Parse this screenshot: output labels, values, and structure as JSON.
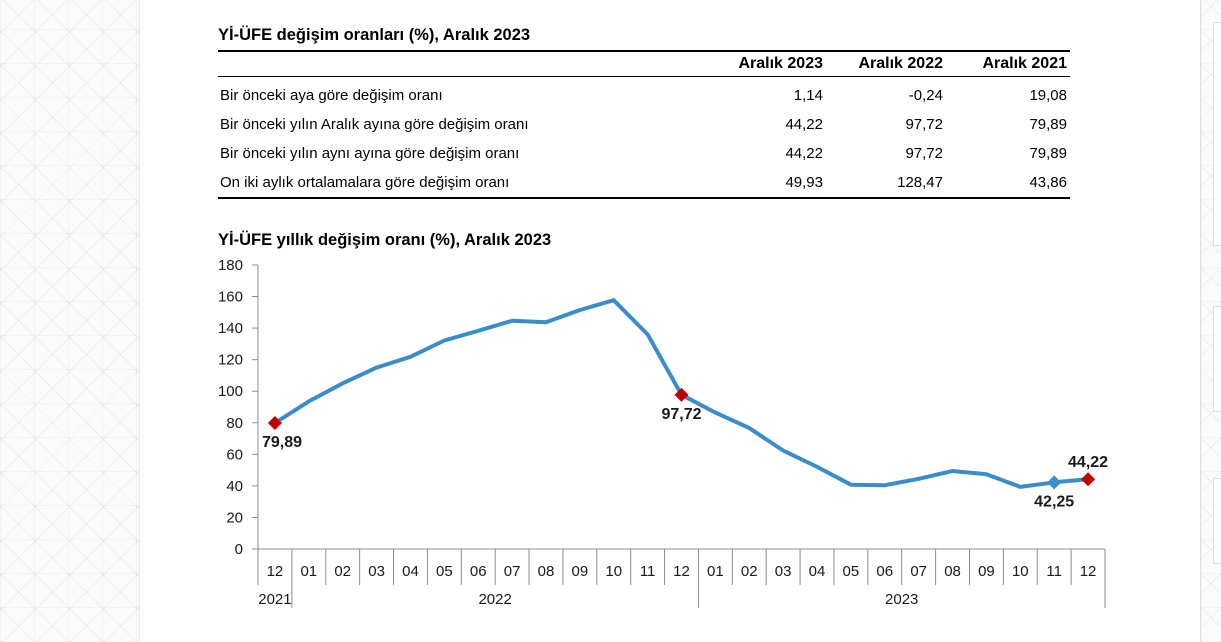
{
  "table": {
    "title": "Yİ-ÜFE değişim oranları (%), Aralık 2023",
    "headers": [
      "Aralık 2023",
      "Aralık 2022",
      "Aralık 2021"
    ],
    "rows": [
      {
        "label": "Bir önceki aya göre değişim oranı",
        "values": [
          "1,14",
          "-0,24",
          "19,08"
        ]
      },
      {
        "label": "Bir önceki yılın Aralık ayına göre değişim oranı",
        "values": [
          "44,22",
          "97,72",
          "79,89"
        ]
      },
      {
        "label": "Bir önceki yılın aynı ayına göre değişim oranı",
        "values": [
          "44,22",
          "97,72",
          "79,89"
        ]
      },
      {
        "label": "On iki aylık ortalamalara göre değişim oranı",
        "values": [
          "49,93",
          "128,47",
          "43,86"
        ]
      }
    ]
  },
  "chart_data": {
    "type": "line",
    "title": "Yİ-ÜFE yıllık değişim oranı (%), Aralık 2023",
    "categories": [
      "12",
      "01",
      "02",
      "03",
      "04",
      "05",
      "06",
      "07",
      "08",
      "09",
      "10",
      "11",
      "12",
      "01",
      "02",
      "03",
      "04",
      "05",
      "06",
      "07",
      "08",
      "09",
      "10",
      "11",
      "12"
    ],
    "category_years": [
      "2021",
      "2022",
      "2022",
      "2022",
      "2022",
      "2022",
      "2022",
      "2022",
      "2022",
      "2022",
      "2022",
      "2022",
      "2022",
      "2023",
      "2023",
      "2023",
      "2023",
      "2023",
      "2023",
      "2023",
      "2023",
      "2023",
      "2023",
      "2023",
      "2023"
    ],
    "series": [
      {
        "values": [
          79.89,
          93.53,
          105.01,
          114.97,
          121.82,
          132.16,
          138.31,
          144.61,
          143.75,
          151.5,
          157.69,
          136.02,
          97.72,
          86.46,
          76.61,
          62.45,
          52.11,
          40.76,
          40.42,
          44.5,
          49.41,
          47.44,
          39.39,
          42.25,
          44.22
        ],
        "color": "#3b8ccb"
      }
    ],
    "ylim": [
      0,
      180
    ],
    "yticks": [
      0,
      20,
      40,
      60,
      80,
      100,
      120,
      140,
      160,
      180
    ],
    "grid": false,
    "axis_color": "#8c8c8c",
    "marker_shape": "diamond",
    "markers": [
      {
        "index": 0,
        "color": "#c00000"
      },
      {
        "index": 12,
        "color": "#c00000"
      },
      {
        "index": 23,
        "color": "#3b8ccb"
      },
      {
        "index": 24,
        "color": "#c00000"
      }
    ],
    "data_labels": [
      {
        "index": 0,
        "text": "79,89",
        "position": "below"
      },
      {
        "index": 12,
        "text": "97,72",
        "position": "below"
      },
      {
        "index": 23,
        "text": "42,25",
        "position": "below"
      },
      {
        "index": 24,
        "text": "44,22",
        "position": "above"
      }
    ]
  }
}
